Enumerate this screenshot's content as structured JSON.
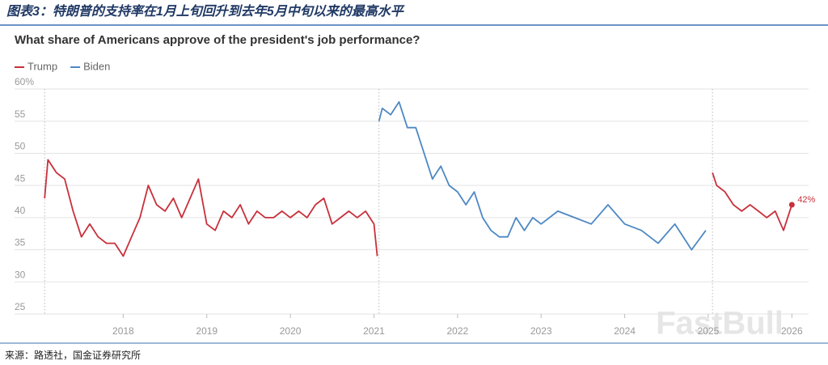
{
  "header": {
    "title": "图表3：特朗普的支持率在1月上旬回升到去年5月中旬以来的最高水平"
  },
  "chart_data": {
    "type": "line",
    "title": "What share of Americans approve of the president's job performance?",
    "xlim": [
      2016.7,
      2026.2
    ],
    "xticks": [
      2018,
      2019,
      2020,
      2021,
      2022,
      2023,
      2024,
      2025,
      2026
    ],
    "ylim": [
      25,
      60
    ],
    "yticks": [
      25,
      30,
      35,
      40,
      45,
      50,
      55,
      {
        "value": 60,
        "label": "60%"
      }
    ],
    "grid": true,
    "legend": "top-left",
    "series": [
      {
        "name": "Trump",
        "color": "#c8303b",
        "x": [
          2017.06,
          2017.1,
          2017.2,
          2017.3,
          2017.4,
          2017.5,
          2017.6,
          2017.7,
          2017.8,
          2017.9,
          2018.0,
          2018.1,
          2018.2,
          2018.3,
          2018.4,
          2018.5,
          2018.6,
          2018.7,
          2018.8,
          2018.9,
          2019.0,
          2019.1,
          2019.2,
          2019.3,
          2019.4,
          2019.5,
          2019.6,
          2019.7,
          2019.8,
          2019.9,
          2020.0,
          2020.1,
          2020.2,
          2020.3,
          2020.4,
          2020.5,
          2020.6,
          2020.7,
          2020.8,
          2020.9,
          2021.0,
          2021.04,
          2023.0,
          2025.05,
          2025.1,
          2025.2,
          2025.3,
          2025.4,
          2025.5,
          2025.6,
          2025.7,
          2025.8,
          2025.9,
          2026.0
        ],
        "values": [
          43,
          49,
          47,
          46,
          41,
          37,
          39,
          37,
          36,
          36,
          34,
          37,
          40,
          45,
          42,
          41,
          43,
          40,
          43,
          46,
          39,
          38,
          41,
          40,
          42,
          39,
          41,
          40,
          40,
          41,
          40,
          41,
          40,
          42,
          43,
          39,
          40,
          41,
          40,
          41,
          39,
          34,
          null,
          47,
          45,
          44,
          42,
          41,
          42,
          41,
          40,
          41,
          38,
          42
        ],
        "value_labels": [
          null,
          null,
          null,
          null,
          null,
          null,
          null,
          null,
          null,
          null,
          null,
          null,
          null,
          null,
          null,
          null,
          null,
          null,
          null,
          null,
          null,
          null,
          null,
          null,
          null,
          null,
          null,
          null,
          null,
          null,
          null,
          null,
          null,
          null,
          null,
          null,
          null,
          null,
          null,
          null,
          null,
          null,
          null,
          null,
          null,
          null,
          null,
          null,
          null,
          null,
          null,
          null,
          null,
          "42%"
        ]
      },
      {
        "name": "Biden",
        "color": "#4d88c4",
        "x": [
          2021.06,
          2021.1,
          2021.2,
          2021.3,
          2021.4,
          2021.5,
          2021.6,
          2021.7,
          2021.8,
          2021.9,
          2022.0,
          2022.1,
          2022.2,
          2022.3,
          2022.4,
          2022.5,
          2022.6,
          2022.7,
          2022.8,
          2022.9,
          2023.0,
          2023.2,
          2023.4,
          2023.6,
          2023.8,
          2024.0,
          2024.2,
          2024.4,
          2024.6,
          2024.8,
          2024.97
        ],
        "values": [
          55,
          57,
          56,
          58,
          54,
          54,
          50,
          46,
          48,
          45,
          44,
          42,
          44,
          40,
          38,
          37,
          37,
          40,
          38,
          40,
          39,
          41,
          40,
          39,
          42,
          39,
          38,
          36,
          39,
          35,
          38
        ]
      }
    ],
    "watermark": "FastBull"
  },
  "source": "来源：路透社，国金证券研究所"
}
